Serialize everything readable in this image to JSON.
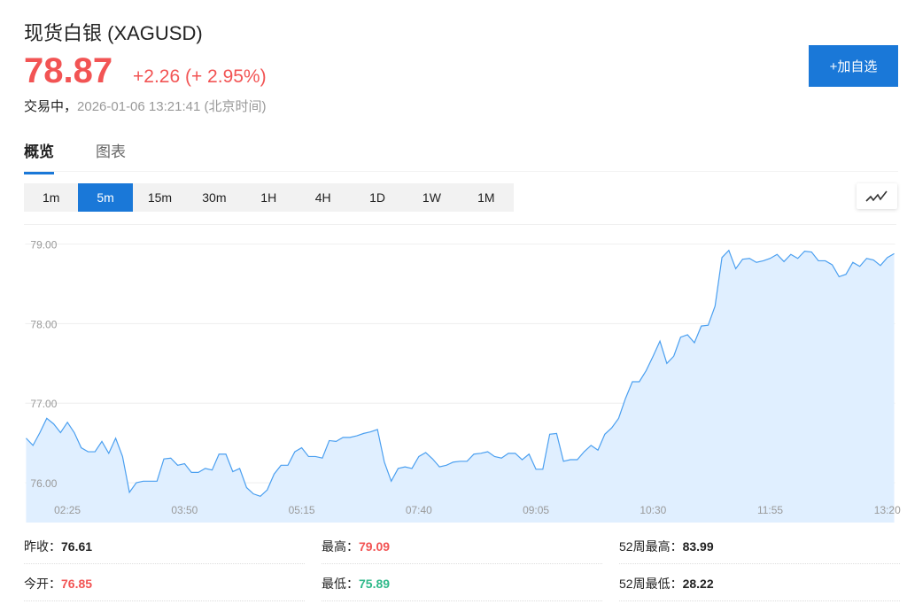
{
  "header": {
    "title": "现货白银 (XAGUSD)",
    "price": "78.87",
    "change": "+2.26 (+ 2.95%)",
    "status_label": "交易中，",
    "timestamp": "2026-01-06 13:21:41",
    "timezone": "(北京时间)",
    "add_watchlist": "+加自选"
  },
  "tabs": [
    {
      "label": "概览",
      "active": true
    },
    {
      "label": "图表",
      "active": false
    }
  ],
  "periods": [
    {
      "label": "1m"
    },
    {
      "label": "5m",
      "active": true
    },
    {
      "label": "15m"
    },
    {
      "label": "30m"
    },
    {
      "label": "1H"
    },
    {
      "label": "4H"
    },
    {
      "label": "1D"
    },
    {
      "label": "1W"
    },
    {
      "label": "1M"
    }
  ],
  "chart_toggle_icon": "line-chart-icon",
  "colors": {
    "accent": "#1a78d8",
    "up": "#f25454",
    "down": "#2fb98a",
    "line": "#4a9ff0",
    "fill": "#e0efff"
  },
  "chart_data": {
    "type": "area",
    "ylim": [
      75.5,
      79.24
    ],
    "yticks": [
      "79.00",
      "78.00",
      "77.00",
      "76.00"
    ],
    "ytick_values": [
      79,
      78,
      77,
      76
    ],
    "xticks": [
      {
        "i": 6,
        "label": "02:25"
      },
      {
        "i": 23,
        "label": "03:50"
      },
      {
        "i": 40,
        "label": "05:15"
      },
      {
        "i": 57,
        "label": "07:40"
      },
      {
        "i": 74,
        "label": "09:05"
      },
      {
        "i": 91,
        "label": "10:30"
      },
      {
        "i": 108,
        "label": "11:55"
      },
      {
        "i": 125,
        "label": "13:20"
      }
    ],
    "grid": true,
    "values": [
      76.56,
      76.47,
      76.63,
      76.81,
      76.74,
      76.63,
      76.76,
      76.63,
      76.44,
      76.39,
      76.39,
      76.52,
      76.37,
      76.56,
      76.33,
      75.88,
      76.0,
      76.02,
      76.02,
      76.02,
      76.3,
      76.31,
      76.22,
      76.24,
      76.13,
      76.13,
      76.18,
      76.16,
      76.36,
      76.36,
      76.14,
      76.18,
      75.94,
      75.86,
      75.83,
      75.91,
      76.11,
      76.22,
      76.22,
      76.39,
      76.44,
      76.33,
      76.33,
      76.31,
      76.53,
      76.52,
      76.57,
      76.57,
      76.59,
      76.62,
      76.64,
      76.67,
      76.26,
      76.02,
      76.18,
      76.2,
      76.18,
      76.33,
      76.38,
      76.3,
      76.2,
      76.22,
      76.26,
      76.27,
      76.27,
      76.36,
      76.37,
      76.39,
      76.33,
      76.31,
      76.37,
      76.37,
      76.29,
      76.36,
      76.17,
      76.17,
      76.61,
      76.62,
      76.27,
      76.29,
      76.29,
      76.39,
      76.47,
      76.41,
      76.61,
      76.69,
      76.81,
      77.06,
      77.27,
      77.27,
      77.41,
      77.59,
      77.78,
      77.5,
      77.59,
      77.83,
      77.86,
      77.76,
      77.97,
      77.98,
      78.22,
      78.83,
      78.92,
      78.69,
      78.81,
      78.82,
      78.77,
      78.79,
      78.82,
      78.87,
      78.78,
      78.87,
      78.82,
      78.91,
      78.9,
      78.79,
      78.79,
      78.74,
      78.59,
      78.62,
      78.77,
      78.72,
      78.82,
      78.8,
      78.73,
      78.83,
      78.88
    ]
  },
  "stats": [
    {
      "label": "昨收：",
      "value": "76.61",
      "color": "#222"
    },
    {
      "label": "最高：",
      "value": "79.09",
      "color": "#f25454"
    },
    {
      "label": "52周最高：",
      "value": "83.99",
      "color": "#222"
    },
    {
      "label": "今开：",
      "value": "76.85",
      "color": "#f25454"
    },
    {
      "label": "最低：",
      "value": "75.89",
      "color": "#2fb98a"
    },
    {
      "label": "52周最低：",
      "value": "28.22",
      "color": "#222"
    }
  ]
}
